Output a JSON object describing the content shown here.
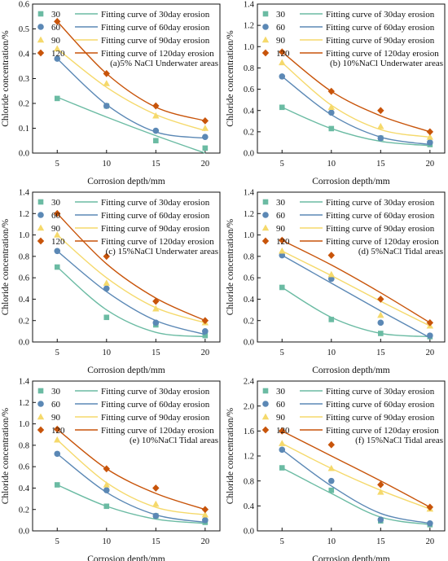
{
  "colors": {
    "s30": "#6bbba3",
    "s60": "#5b88b5",
    "s90": "#f5d96b",
    "s120": "#c8540a"
  },
  "legend": {
    "markers": [
      "30",
      "60",
      "90",
      "120"
    ],
    "curves": [
      "Fitting curve of 30day erosion",
      "Fitting curve of 60day erosion",
      "Fitting curve of 90day erosion",
      "Fitting curve of 120day erosion"
    ]
  },
  "chart_data": [
    {
      "type": "scatter",
      "panel_title": "(a)5% NaCl Underwater areas",
      "xlabel": "Corrosion depth/mm",
      "ylabel": "Chloride concentration/%",
      "x": [
        5,
        10,
        15,
        20
      ],
      "xlim": [
        2.5,
        21.5
      ],
      "ylim": [
        0,
        0.6
      ],
      "yticks": [
        "0.0",
        "0.1",
        "0.2",
        "0.3",
        "0.4",
        "0.5",
        "0.6"
      ],
      "series": [
        {
          "name": "30",
          "values": [
            0.22,
            0.19,
            0.05,
            0.02
          ],
          "fit": [
            0.225,
            0.145,
            0.07,
            0.0
          ]
        },
        {
          "name": "60",
          "values": [
            0.38,
            0.19,
            0.09,
            0.065
          ],
          "fit": [
            0.38,
            0.195,
            0.085,
            0.06
          ]
        },
        {
          "name": "90",
          "values": [
            0.42,
            0.28,
            0.15,
            0.1
          ],
          "fit": [
            0.42,
            0.265,
            0.155,
            0.09
          ]
        },
        {
          "name": "120",
          "values": [
            0.53,
            0.32,
            0.19,
            0.13
          ],
          "fit": [
            0.53,
            0.32,
            0.185,
            0.13
          ]
        }
      ]
    },
    {
      "type": "scatter",
      "panel_title": "(b) 10%NaCl Underwater areas",
      "xlabel": "Corrosion depth/mm",
      "ylabel": "Chloride concentration/%",
      "x": [
        5,
        10,
        15,
        20
      ],
      "xlim": [
        2.5,
        21.5
      ],
      "ylim": [
        0,
        1.4
      ],
      "yticks": [
        "0.0",
        "0.2",
        "0.4",
        "0.6",
        "0.8",
        "1.0",
        "1.2",
        "1.4"
      ],
      "series": [
        {
          "name": "30",
          "values": [
            0.43,
            0.23,
            0.14,
            0.08
          ],
          "fit": [
            0.43,
            0.23,
            0.11,
            0.07
          ]
        },
        {
          "name": "60",
          "values": [
            0.72,
            0.38,
            0.14,
            0.1
          ],
          "fit": [
            0.72,
            0.36,
            0.15,
            0.08
          ]
        },
        {
          "name": "90",
          "values": [
            0.85,
            0.43,
            0.25,
            0.15
          ],
          "fit": [
            0.85,
            0.45,
            0.22,
            0.15
          ]
        },
        {
          "name": "120",
          "values": [
            0.95,
            0.58,
            0.4,
            0.2
          ],
          "fit": [
            0.95,
            0.58,
            0.35,
            0.2
          ]
        }
      ]
    },
    {
      "type": "scatter",
      "panel_title": "(c) 15%NaCl Underwater areas",
      "xlabel": "Corrosion depth/mm",
      "ylabel": "Chloride concentration/%",
      "x": [
        5,
        10,
        15,
        20
      ],
      "xlim": [
        2.5,
        21.5
      ],
      "ylim": [
        0,
        1.4
      ],
      "yticks": [
        "0.0",
        "0.2",
        "0.4",
        "0.6",
        "0.8",
        "1.0",
        "1.2",
        "1.4"
      ],
      "series": [
        {
          "name": "30",
          "values": [
            0.7,
            0.23,
            0.16,
            0.06
          ],
          "fit": [
            0.7,
            0.3,
            0.09,
            0.05
          ]
        },
        {
          "name": "60",
          "values": [
            0.85,
            0.5,
            0.18,
            0.1
          ],
          "fit": [
            0.85,
            0.47,
            0.2,
            0.07
          ]
        },
        {
          "name": "90",
          "values": [
            1.0,
            0.55,
            0.31,
            0.18
          ],
          "fit": [
            1.0,
            0.6,
            0.32,
            0.18
          ]
        },
        {
          "name": "120",
          "values": [
            1.2,
            0.8,
            0.38,
            0.2
          ],
          "fit": [
            1.2,
            0.73,
            0.41,
            0.2
          ]
        }
      ]
    },
    {
      "type": "scatter",
      "panel_title": "(d) 5%NaCl Tidal areas",
      "xlabel": "Corrosion depth/mm",
      "ylabel": "Chloride concentration/%",
      "x": [
        5,
        10,
        15,
        20
      ],
      "xlim": [
        2.5,
        21.5
      ],
      "ylim": [
        0,
        1.4
      ],
      "yticks": [
        "0.0",
        "0.2",
        "0.4",
        "0.6",
        "0.8",
        "1.0",
        "1.2",
        "1.4"
      ],
      "series": [
        {
          "name": "30",
          "values": [
            0.51,
            0.21,
            0.08,
            0.05
          ],
          "fit": [
            0.51,
            0.23,
            0.08,
            0.05
          ]
        },
        {
          "name": "60",
          "values": [
            0.81,
            0.59,
            0.18,
            0.06
          ],
          "fit": [
            0.81,
            0.55,
            0.29,
            0.04
          ]
        },
        {
          "name": "90",
          "values": [
            0.85,
            0.63,
            0.25,
            0.15
          ],
          "fit": [
            0.85,
            0.62,
            0.38,
            0.15
          ]
        },
        {
          "name": "120",
          "values": [
            0.95,
            0.81,
            0.4,
            0.18
          ],
          "fit": [
            0.95,
            0.72,
            0.46,
            0.18
          ]
        }
      ]
    },
    {
      "type": "scatter",
      "panel_title": "(e) 10%NaCl Tidal areas",
      "xlabel": "Corrosion depth/mm",
      "ylabel": "Chloride concentration/%",
      "x": [
        5,
        10,
        15,
        20
      ],
      "xlim": [
        2.5,
        21.5
      ],
      "ylim": [
        0,
        1.4
      ],
      "yticks": [
        "0.0",
        "0.2",
        "0.4",
        "0.6",
        "0.8",
        "1.0",
        "1.2",
        "1.4"
      ],
      "series": [
        {
          "name": "30",
          "values": [
            0.43,
            0.23,
            0.14,
            0.08
          ],
          "fit": [
            0.43,
            0.23,
            0.11,
            0.07
          ]
        },
        {
          "name": "60",
          "values": [
            0.72,
            0.38,
            0.14,
            0.1
          ],
          "fit": [
            0.72,
            0.36,
            0.15,
            0.08
          ]
        },
        {
          "name": "90",
          "values": [
            0.85,
            0.43,
            0.25,
            0.15
          ],
          "fit": [
            0.85,
            0.45,
            0.22,
            0.15
          ]
        },
        {
          "name": "120",
          "values": [
            0.95,
            0.58,
            0.4,
            0.2
          ],
          "fit": [
            0.95,
            0.58,
            0.35,
            0.2
          ]
        }
      ]
    },
    {
      "type": "scatter",
      "panel_title": "(f) 15%NaCl Tidal areas",
      "xlabel": "Corrosion depth/mm",
      "ylabel": "Chloride concentration/%",
      "x": [
        5,
        10,
        15,
        20
      ],
      "xlim": [
        2.5,
        21.5
      ],
      "ylim": [
        0,
        2.4
      ],
      "yticks": [
        "0.0",
        "0.4",
        "0.8",
        "1.2",
        "1.6",
        "2.0",
        "2.4"
      ],
      "series": [
        {
          "name": "30",
          "values": [
            1.01,
            0.65,
            0.16,
            0.1
          ],
          "fit": [
            1.01,
            0.6,
            0.22,
            0.1
          ]
        },
        {
          "name": "60",
          "values": [
            1.3,
            0.8,
            0.18,
            0.12
          ],
          "fit": [
            1.3,
            0.72,
            0.28,
            0.12
          ]
        },
        {
          "name": "90",
          "values": [
            1.4,
            1.0,
            0.62,
            0.35
          ],
          "fit": [
            1.4,
            1.0,
            0.65,
            0.35
          ]
        },
        {
          "name": "120",
          "values": [
            1.6,
            1.38,
            0.74,
            0.38
          ],
          "fit": [
            1.6,
            1.2,
            0.8,
            0.38
          ]
        }
      ]
    }
  ]
}
